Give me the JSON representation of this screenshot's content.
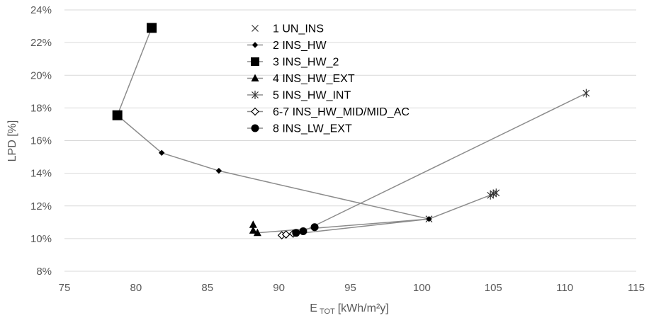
{
  "chart_data": {
    "type": "scatter",
    "title": "",
    "xlabel": "E",
    "xlabel_sub": "TOT",
    "xlabel_unit": "[kWh/m²y]",
    "ylabel": "LPD [%]",
    "xlim": [
      75,
      115
    ],
    "ylim": [
      8,
      24
    ],
    "x_ticks": [
      "75",
      "80",
      "85",
      "90",
      "95",
      "100",
      "105",
      "110",
      "115"
    ],
    "y_ticks": [
      "8%",
      "10%",
      "12%",
      "14%",
      "16%",
      "18%",
      "20%",
      "22%",
      "24%"
    ],
    "grid": "horizontal",
    "legend_position": "top-center",
    "series": [
      {
        "name": "1 UN_INS",
        "marker": "x",
        "points": [
          [
            100.5,
            11.2
          ]
        ]
      },
      {
        "name": "2 INS_HW",
        "marker": "diamond",
        "points": [
          [
            81.8,
            15.25
          ],
          [
            85.8,
            14.15
          ],
          [
            100.5,
            11.2
          ]
        ]
      },
      {
        "name": "3 INS_HW_2",
        "marker": "square",
        "points": [
          [
            81.1,
            22.9
          ],
          [
            78.7,
            17.55
          ]
        ]
      },
      {
        "name": "4 INS_HW_EXT",
        "marker": "triangle",
        "points": [
          [
            88.2,
            10.85
          ],
          [
            88.2,
            10.5
          ],
          [
            88.5,
            10.35
          ]
        ]
      },
      {
        "name": "5 INS_HW_INT",
        "marker": "asterisk",
        "points": [
          [
            104.8,
            12.65
          ],
          [
            105.0,
            12.75
          ],
          [
            105.2,
            12.8
          ],
          [
            111.5,
            18.9
          ]
        ]
      },
      {
        "name": "6-7 INS_HW_MID/MID_AC",
        "marker": "open-diamond",
        "points": [
          [
            90.2,
            10.2
          ],
          [
            90.5,
            10.25
          ],
          [
            91.0,
            10.3
          ]
        ]
      },
      {
        "name": "8 INS_LW_EXT",
        "marker": "circle",
        "points": [
          [
            91.2,
            10.35
          ],
          [
            91.7,
            10.45
          ],
          [
            92.5,
            10.7
          ]
        ]
      }
    ],
    "connector_lines": [
      [
        [
          81.1,
          22.9
        ],
        [
          78.7,
          17.55
        ],
        [
          81.8,
          15.25
        ],
        [
          85.8,
          14.15
        ],
        [
          100.5,
          11.2
        ],
        [
          105.2,
          12.8
        ]
      ],
      [
        [
          88.5,
          10.35
        ],
        [
          100.5,
          11.2
        ]
      ],
      [
        [
          90.2,
          10.2
        ],
        [
          100.5,
          11.2
        ]
      ],
      [
        [
          91.7,
          10.45
        ],
        [
          111.5,
          18.9
        ]
      ]
    ]
  }
}
